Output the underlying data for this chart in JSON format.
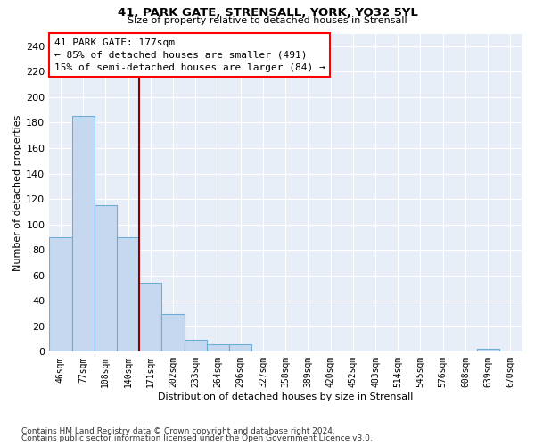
{
  "title1": "41, PARK GATE, STRENSALL, YORK, YO32 5YL",
  "title2": "Size of property relative to detached houses in Strensall",
  "xlabel": "Distribution of detached houses by size in Strensall",
  "ylabel": "Number of detached properties",
  "bar_color": "#c5d8f0",
  "bar_edge_color": "#6baed6",
  "background_color": "#e8eef8",
  "annotation_title": "41 PARK GATE: 177sqm",
  "annotation_line1": "← 85% of detached houses are smaller (491)",
  "annotation_line2": "15% of semi-detached houses are larger (84) →",
  "red_line_x": 3.5,
  "categories": [
    "46sqm",
    "77sqm",
    "108sqm",
    "140sqm",
    "171sqm",
    "202sqm",
    "233sqm",
    "264sqm",
    "296sqm",
    "327sqm",
    "358sqm",
    "389sqm",
    "420sqm",
    "452sqm",
    "483sqm",
    "514sqm",
    "545sqm",
    "576sqm",
    "608sqm",
    "639sqm",
    "670sqm"
  ],
  "values": [
    90,
    185,
    115,
    90,
    54,
    30,
    9,
    6,
    6,
    0,
    0,
    0,
    0,
    0,
    0,
    0,
    0,
    0,
    0,
    2,
    0
  ],
  "ylim": [
    0,
    250
  ],
  "yticks": [
    0,
    20,
    40,
    60,
    80,
    100,
    120,
    140,
    160,
    180,
    200,
    220,
    240
  ],
  "footer1": "Contains HM Land Registry data © Crown copyright and database right 2024.",
  "footer2": "Contains public sector information licensed under the Open Government Licence v3.0."
}
